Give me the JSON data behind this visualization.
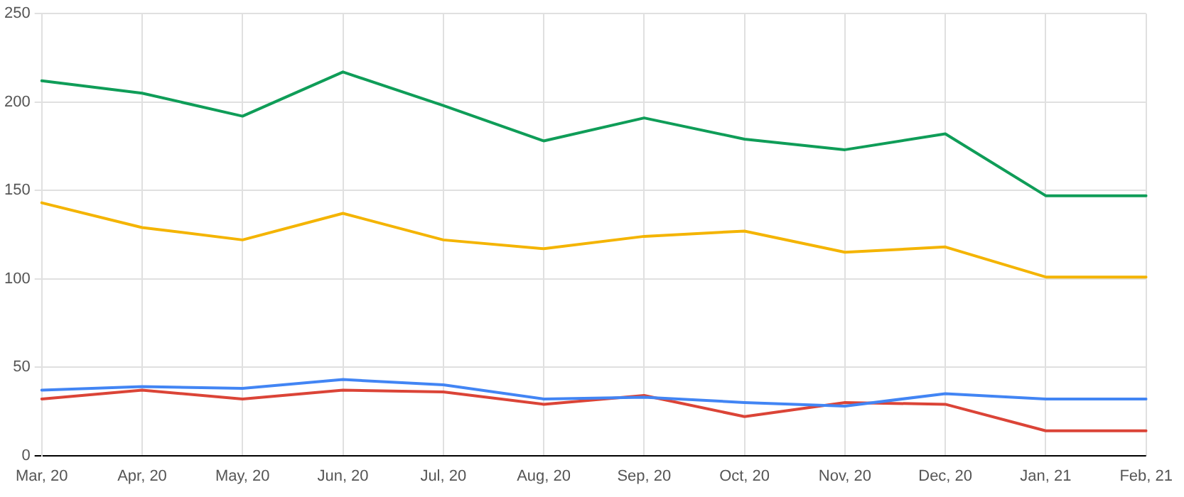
{
  "chart_data": {
    "type": "line",
    "categories": [
      "Mar, 20",
      "Apr, 20",
      "May, 20",
      "Jun, 20",
      "Jul, 20",
      "Aug, 20",
      "Sep, 20",
      "Oct, 20",
      "Nov, 20",
      "Dec, 20",
      "Jan, 21",
      "Feb, 21"
    ],
    "series": [
      {
        "color": "#0f9d58",
        "values": [
          212,
          205,
          192,
          217,
          198,
          178,
          191,
          179,
          173,
          182,
          147,
          147
        ]
      },
      {
        "color": "#f4b400",
        "values": [
          143,
          129,
          122,
          137,
          122,
          117,
          124,
          127,
          115,
          118,
          101,
          101
        ]
      },
      {
        "color": "#4285f4",
        "values": [
          37,
          39,
          38,
          43,
          40,
          32,
          33,
          30,
          28,
          35,
          32,
          32
        ]
      },
      {
        "color": "#db4437",
        "values": [
          32,
          37,
          32,
          37,
          36,
          29,
          34,
          22,
          30,
          29,
          14,
          14
        ]
      }
    ],
    "ylim": [
      0,
      250
    ],
    "yticks": [
      0,
      50,
      100,
      150,
      200,
      250
    ],
    "grid": true,
    "legend": false,
    "marker": "none",
    "line_style": "solid"
  }
}
